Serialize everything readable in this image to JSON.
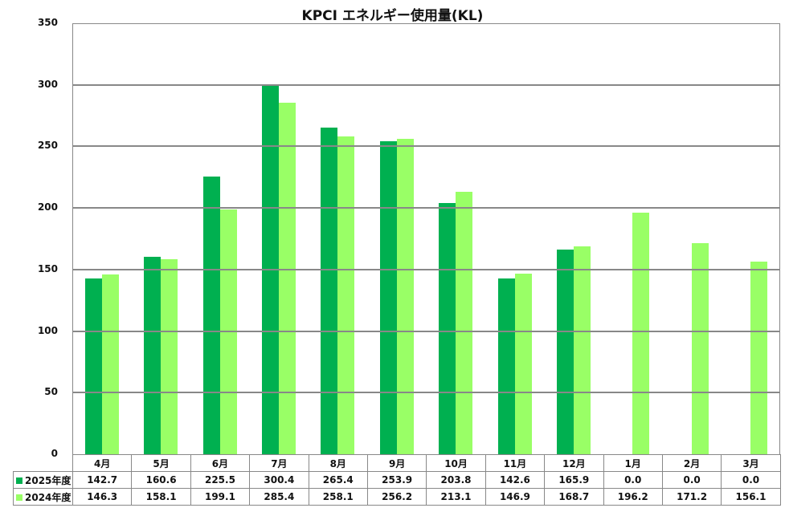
{
  "title": "KPCⅠ エネルギー使用量(KL)",
  "colors": {
    "series_2025": "#00b050",
    "series_2024": "#99ff66",
    "grid": "#888888"
  },
  "y_ticks": [
    "350",
    "300",
    "250",
    "200",
    "150",
    "100",
    "50",
    "0"
  ],
  "table": {
    "months": [
      "4月",
      "5月",
      "6月",
      "7月",
      "8月",
      "9月",
      "10月",
      "11月",
      "12月",
      "1月",
      "2月",
      "3月"
    ],
    "rows": [
      {
        "label": "2025年度",
        "values": [
          "142.7",
          "160.6",
          "225.5",
          "300.4",
          "265.4",
          "253.9",
          "203.8",
          "142.6",
          "165.9",
          "0.0",
          "0.0",
          "0.0"
        ]
      },
      {
        "label": "2024年度",
        "values": [
          "146.3",
          "158.1",
          "199.1",
          "285.4",
          "258.1",
          "256.2",
          "213.1",
          "146.9",
          "168.7",
          "196.2",
          "171.2",
          "156.1"
        ]
      }
    ]
  },
  "chart_data": {
    "type": "bar",
    "title": "KPCⅠ エネルギー使用量(KL)",
    "xlabel": "",
    "ylabel": "",
    "ylim": [
      0,
      350
    ],
    "y_ticks": [
      0,
      50,
      100,
      150,
      200,
      250,
      300,
      350
    ],
    "grid": true,
    "legend_position": "data-table",
    "categories": [
      "4月",
      "5月",
      "6月",
      "7月",
      "8月",
      "9月",
      "10月",
      "11月",
      "12月",
      "1月",
      "2月",
      "3月"
    ],
    "series": [
      {
        "name": "2025年度",
        "color": "#00b050",
        "values": [
          142.7,
          160.6,
          225.5,
          300.4,
          265.4,
          253.9,
          203.8,
          142.6,
          165.9,
          0.0,
          0.0,
          0.0
        ]
      },
      {
        "name": "2024年度",
        "color": "#99ff66",
        "values": [
          146.3,
          158.1,
          199.1,
          285.4,
          258.1,
          256.2,
          213.1,
          146.9,
          168.7,
          196.2,
          171.2,
          156.1
        ]
      }
    ]
  }
}
